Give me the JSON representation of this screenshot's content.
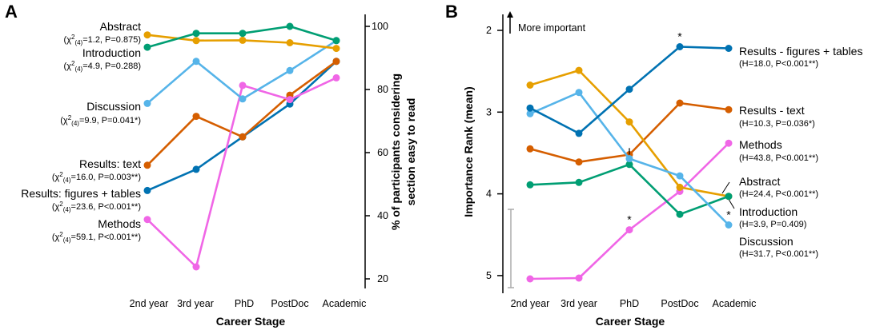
{
  "colors": {
    "Abstract": "#E69F00",
    "Introduction": "#009E73",
    "Discussion": "#56B4E9",
    "Results: text": "#D55E00",
    "Results: figures + tables": "#0072B2",
    "Methods": "#F066E6"
  },
  "chart_data": [
    {
      "panel": "A",
      "type": "line",
      "categories": [
        "2nd year",
        "3rd year",
        "PhD",
        "PostDoc",
        "Academic"
      ],
      "xlabel": "Career Stage",
      "ylabel_line1": "% of participants considering",
      "ylabel_line2": "section easy to read",
      "ylim": [
        17,
        104
      ],
      "yticks": [
        "20",
        "40",
        "60",
        "80",
        "100"
      ],
      "series": [
        {
          "name": "Abstract",
          "name_label": "Abstract",
          "stat_prefix": "(χ",
          "stat_sup": "2",
          "stat_sub": "(4)",
          "stat_suffix": "=1.2, P=0.875)",
          "values": [
            97.3,
            95.5,
            95.6,
            94.8,
            93.0
          ]
        },
        {
          "name": "Introduction",
          "name_label": "Introduction",
          "stat_prefix": "(χ",
          "stat_sup": "2",
          "stat_sub": "(4)",
          "stat_suffix": "=4.9, P=0.288)",
          "values": [
            93.4,
            97.8,
            97.8,
            100.0,
            95.5
          ]
        },
        {
          "name": "Discussion",
          "name_label": "Discussion",
          "stat_prefix": "(χ",
          "stat_sup": "2",
          "stat_sub": "(4)",
          "stat_suffix": "=9.9, P=0.041*)",
          "values": [
            75.6,
            88.9,
            77.0,
            86.0,
            95.5
          ]
        },
        {
          "name": "Results: text",
          "name_label": "Results: text",
          "stat_prefix": "(χ",
          "stat_sup": "2",
          "stat_sub": "(4)",
          "stat_suffix": "=16.0, P=0.003**)",
          "values": [
            56.0,
            71.5,
            65.0,
            78.2,
            88.9
          ]
        },
        {
          "name": "Results: figures + tables",
          "name_label": "Results: figures + tables",
          "stat_prefix": "(χ",
          "stat_sup": "2",
          "stat_sub": "(4)",
          "stat_suffix": "=23.6, P<0.001**)",
          "values": [
            48.0,
            54.7,
            65.0,
            75.4,
            88.9
          ]
        },
        {
          "name": "Methods",
          "name_label": "Methods",
          "stat_prefix": "(χ",
          "stat_sup": "2",
          "stat_sub": "(4)",
          "stat_suffix": "=59.1, P<0.001**)",
          "values": [
            38.8,
            23.8,
            81.3,
            76.8,
            83.7
          ]
        }
      ]
    },
    {
      "panel": "B",
      "type": "line",
      "categories": [
        "2nd year",
        "3rd year",
        "PhD",
        "PostDoc",
        "Academic"
      ],
      "xlabel": "Career Stage",
      "ylabel": "Importance Rank (mean)",
      "ylim": [
        1.75,
        5.2
      ],
      "y_inverted": true,
      "yticks": [
        "2",
        "3",
        "4",
        "5"
      ],
      "arrow_note": "More important",
      "star_symbol": "*",
      "series": [
        {
          "name": "Results: figures + tables",
          "name_label": "Results - figures + tables",
          "stat": "(H=18.0, P<0.001**)",
          "values": [
            2.95,
            3.26,
            2.72,
            2.2,
            2.22
          ],
          "star_index": 3
        },
        {
          "name": "Results: text",
          "name_label": "Results - text",
          "stat": "(H=10.3, P=0.036*)",
          "values": [
            3.45,
            3.61,
            3.52,
            2.89,
            2.97
          ],
          "star_index": null
        },
        {
          "name": "Methods",
          "name_label": "Methods",
          "stat": "(H=43.8, P<0.001**)",
          "values": [
            5.04,
            5.03,
            4.44,
            3.97,
            3.38
          ],
          "star_index": 2
        },
        {
          "name": "Abstract",
          "name_label": "Abstract",
          "stat": "(H=24.4, P<0.001**)",
          "values": [
            2.67,
            2.49,
            3.12,
            3.92,
            4.03
          ],
          "star_index": null
        },
        {
          "name": "Introduction",
          "name_label": "Introduction",
          "stat": "(H=3.9, P=0.409)",
          "values": [
            3.89,
            3.86,
            3.64,
            4.25,
            4.03
          ],
          "star_index": null
        },
        {
          "name": "Discussion",
          "name_label": "Discussion",
          "stat": "(H=31.7, P<0.001**)",
          "values": [
            3.02,
            2.76,
            3.57,
            3.78,
            4.38
          ],
          "star_index": 4
        }
      ]
    }
  ]
}
